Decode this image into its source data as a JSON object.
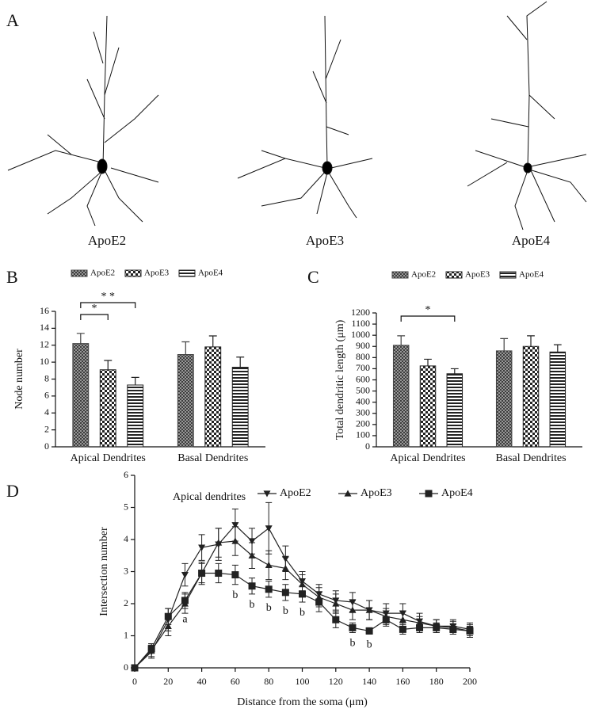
{
  "panel_labels": [
    "A",
    "B",
    "C",
    "D"
  ],
  "neuron_captions": [
    "ApoE2",
    "ApoE3",
    "ApoE4"
  ],
  "chart_data": [
    {
      "type": "bar",
      "ylabel": "Node number",
      "categories": [
        "Apical Dendrites",
        "Basal Dendrites"
      ],
      "series": [
        {
          "name": "ApoE2",
          "color": "#444",
          "fill": "crosshatch",
          "values": [
            12.2,
            10.9
          ],
          "errors": [
            1.2,
            1.5
          ]
        },
        {
          "name": "ApoE3",
          "color": "#222",
          "fill": "checker",
          "values": [
            9.1,
            11.8
          ],
          "errors": [
            1.1,
            1.3
          ]
        },
        {
          "name": "ApoE4",
          "color": "#222",
          "fill": "stripes",
          "values": [
            7.3,
            9.4
          ],
          "errors": [
            0.9,
            1.2
          ]
        }
      ],
      "ylim": [
        0,
        16
      ],
      "yticks": [
        0,
        2,
        4,
        6,
        8,
        10,
        12,
        14,
        16
      ],
      "brackets": [
        {
          "label": "*",
          "between": [
            "ApoE2",
            "ApoE3"
          ]
        },
        {
          "label": "* *",
          "between": [
            "ApoE2",
            "ApoE4"
          ]
        }
      ]
    },
    {
      "type": "bar",
      "ylabel": "Total dendritic length (μm)",
      "categories": [
        "Apical Dendrites",
        "Basal Dendrites"
      ],
      "series": [
        {
          "name": "ApoE2",
          "color": "#444",
          "fill": "crosshatch",
          "values": [
            910,
            860
          ],
          "errors": [
            85,
            110
          ]
        },
        {
          "name": "ApoE3",
          "color": "#222",
          "fill": "checker",
          "values": [
            725,
            900
          ],
          "errors": [
            60,
            95
          ]
        },
        {
          "name": "ApoE4",
          "color": "#222",
          "fill": "stripes",
          "values": [
            655,
            850
          ],
          "errors": [
            45,
            65
          ]
        }
      ],
      "ylim": [
        0,
        1200
      ],
      "yticks": [
        0,
        100,
        200,
        300,
        400,
        500,
        600,
        700,
        800,
        900,
        1000,
        1100,
        1200
      ],
      "brackets": [
        {
          "label": "*",
          "between": [
            "ApoE2",
            "ApoE4"
          ]
        }
      ]
    },
    {
      "type": "line",
      "annotation": "Apical dendrites",
      "xlabel": "Distance from the soma (μm)",
      "ylabel": "Intersection number",
      "x": [
        0,
        10,
        20,
        30,
        40,
        50,
        60,
        70,
        80,
        90,
        100,
        110,
        120,
        130,
        140,
        150,
        160,
        170,
        180,
        190,
        200
      ],
      "series": [
        {
          "name": "ApoE2",
          "color": "#222",
          "marker": "triangle-down",
          "values": [
            0,
            0.5,
            1.5,
            2.9,
            3.75,
            3.85,
            4.45,
            3.95,
            4.35,
            3.4,
            2.7,
            2.3,
            2.1,
            2.05,
            1.8,
            1.7,
            1.7,
            1.45,
            1.3,
            1.3,
            1.2
          ],
          "errors": [
            0,
            0.2,
            0.35,
            0.35,
            0.4,
            0.5,
            0.5,
            0.4,
            0.8,
            0.4,
            0.3,
            0.3,
            0.3,
            0.3,
            0.3,
            0.3,
            0.3,
            0.25,
            0.2,
            0.2,
            0.2
          ]
        },
        {
          "name": "ApoE3",
          "color": "#222",
          "marker": "triangle-up",
          "values": [
            0,
            0.55,
            1.3,
            2.0,
            2.95,
            3.9,
            3.95,
            3.5,
            3.2,
            3.1,
            2.6,
            2.2,
            2.0,
            1.8,
            1.8,
            1.6,
            1.5,
            1.4,
            1.3,
            1.25,
            1.15
          ],
          "errors": [
            0,
            0.2,
            0.3,
            0.3,
            0.35,
            0.45,
            0.45,
            0.4,
            0.45,
            0.35,
            0.3,
            0.3,
            0.3,
            0.3,
            0.3,
            0.25,
            0.25,
            0.2,
            0.2,
            0.2,
            0.2
          ]
        },
        {
          "name": "ApoE4",
          "color": "#222",
          "marker": "square",
          "values": [
            0,
            0.6,
            1.6,
            2.1,
            2.95,
            2.95,
            2.9,
            2.55,
            2.45,
            2.35,
            2.3,
            2.05,
            1.5,
            1.25,
            1.15,
            1.5,
            1.2,
            1.25,
            1.25,
            1.2,
            1.15
          ],
          "errors": [
            0,
            0.15,
            0.25,
            0.25,
            0.3,
            0.3,
            0.3,
            0.25,
            0.25,
            0.25,
            0.25,
            0.3,
            0.25,
            0.15,
            0.1,
            0.2,
            0.15,
            0.15,
            0.15,
            0.15,
            0.15
          ]
        }
      ],
      "xlim": [
        0,
        200
      ],
      "xticks": [
        0,
        20,
        40,
        60,
        80,
        100,
        120,
        140,
        160,
        180,
        200
      ],
      "ylim": [
        0,
        6
      ],
      "yticks": [
        0,
        1,
        2,
        3,
        4,
        5,
        6
      ],
      "significance": {
        "x": [
          30,
          60,
          70,
          80,
          90,
          100,
          130,
          140
        ],
        "labels": [
          "a",
          "b",
          "b",
          "b",
          "b",
          "b",
          "b",
          "b"
        ]
      }
    }
  ]
}
